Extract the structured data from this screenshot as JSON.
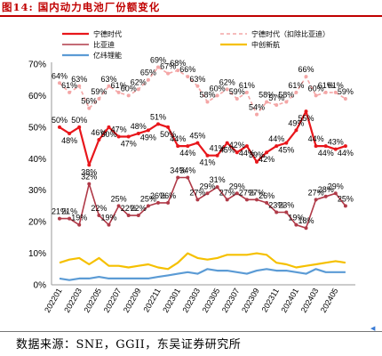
{
  "page": {
    "title": "图14:  国内动力电池厂份额变化",
    "source": "数据来源：SNE，GGII，东吴证券研究所",
    "corner_mark": "◀"
  },
  "chart_data": {
    "type": "line",
    "title": "",
    "xlabel": "",
    "ylabel": "",
    "ylim": [
      0,
      70
    ],
    "yticks": [
      "0%",
      "10%",
      "20%",
      "30%",
      "40%",
      "50%",
      "60%",
      "70%"
    ],
    "grid": false,
    "legend_position": "top",
    "x": [
      "202201",
      "202202",
      "202203",
      "202204",
      "202205",
      "202206",
      "202207",
      "202208",
      "202209",
      "202210",
      "202211",
      "202212",
      "202301",
      "202302",
      "202303",
      "202304",
      "202305",
      "202306",
      "202307",
      "202308",
      "202309",
      "202310",
      "202311",
      "202312",
      "202401",
      "202402",
      "202403",
      "202404",
      "202405",
      "202406"
    ],
    "x_tick_labels": [
      "202201",
      "202203",
      "202205",
      "202207",
      "202209",
      "202211",
      "202301",
      "202303",
      "202305",
      "202307",
      "202309",
      "202311",
      "202401",
      "202403",
      "202405"
    ],
    "series": [
      {
        "name": "宁德时代",
        "color": "#e8161b",
        "style": "solid",
        "marker": true,
        "values": [
          50,
          48,
          50,
          38,
          46,
          50,
          47,
          47,
          48,
          49,
          51,
          50,
          44,
          44,
          45,
          41,
          41,
          45,
          42,
          44,
          39,
          42,
          44,
          45,
          49,
          55,
          44,
          44,
          43,
          44
        ],
        "labels": [
          "50%",
          "48%",
          "50%",
          "38%",
          "46%",
          "50%",
          "47%",
          "47%",
          "48%",
          "49%",
          "51%",
          "50%",
          "44%",
          "44%",
          "45%",
          "41%",
          "41%",
          "45%",
          "42%",
          "44%",
          "39%",
          "42%",
          "44%",
          "45%",
          "49%",
          "55%",
          "44%",
          "44%",
          "43%",
          "44%"
        ]
      },
      {
        "name": "宁德时代（扣除比亚迪）",
        "color": "#f4a6a6",
        "style": "dashed",
        "marker": true,
        "values": [
          64,
          61,
          63,
          56,
          59,
          63,
          61,
          60,
          62,
          65,
          69,
          67,
          68,
          66,
          63,
          58,
          60,
          62,
          59,
          61,
          54,
          58,
          57,
          58,
          61,
          66,
          60,
          61,
          61,
          59
        ],
        "labels": [
          "64%",
          "61%",
          "63%",
          "56%",
          "59%",
          "63%",
          "61%",
          "60%",
          "62%",
          "65%",
          "69%",
          "67%",
          "68%",
          "66%",
          "63%",
          "58%",
          "60%",
          "62%",
          "59%",
          "61%",
          "54%",
          "58%",
          "57%",
          "58%",
          "61%",
          "66%",
          "60%",
          "61%",
          "61%",
          "59%"
        ]
      },
      {
        "name": "比亚迪",
        "color": "#b03a48",
        "style": "solid",
        "marker": true,
        "values": [
          21,
          21,
          19,
          32,
          22,
          19,
          25,
          22,
          22,
          25,
          26,
          26,
          34,
          34,
          27,
          29,
          31,
          27,
          29,
          27,
          27,
          26,
          23,
          23,
          19,
          18,
          27,
          28,
          29,
          25
        ],
        "labels": [
          "21%",
          "21%",
          "19%",
          "32%",
          "22%",
          "19%",
          "25%",
          "22%",
          "22%",
          "25%",
          "26%",
          "26%",
          "34%",
          "34%",
          "27%",
          "29%",
          "31%",
          "27%",
          "29%",
          "27%",
          "27%",
          "26%",
          "23%",
          "23%",
          "19%",
          "18%",
          "27%",
          "28%",
          "29%",
          "25%"
        ]
      },
      {
        "name": "中创新航",
        "color": "#f5c000",
        "style": "solid",
        "marker": false,
        "values": [
          7.0,
          8.0,
          8.5,
          6.5,
          8.5,
          6.0,
          6.0,
          5.5,
          6.0,
          6.5,
          5.5,
          5.0,
          7.0,
          10.0,
          8.5,
          8.0,
          8.5,
          9.5,
          9.5,
          9.5,
          10.0,
          9.5,
          7.0,
          6.5,
          5.5,
          6.0,
          6.5,
          7.0,
          7.5,
          7.0
        ]
      },
      {
        "name": "亿纬锂能",
        "color": "#5b9bd5",
        "style": "solid",
        "marker": false,
        "values": [
          2.0,
          1.5,
          2.0,
          2.0,
          2.5,
          2.0,
          2.0,
          2.0,
          2.0,
          2.0,
          2.5,
          3.0,
          3.5,
          4.0,
          3.5,
          5.0,
          4.5,
          4.5,
          4.0,
          3.5,
          4.5,
          5.0,
          4.5,
          4.5,
          4.0,
          3.5,
          5.0,
          4.0,
          4.0,
          4.0
        ]
      }
    ]
  }
}
